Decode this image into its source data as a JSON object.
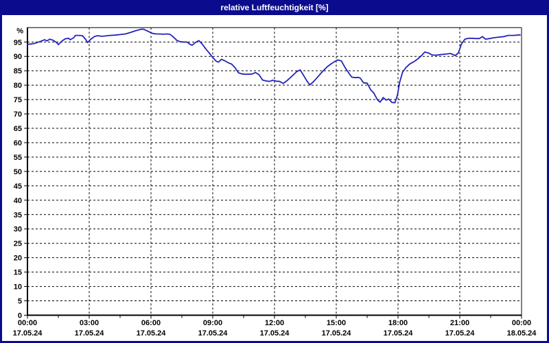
{
  "window": {
    "title": "relative Luftfeuchtigkeit [%]"
  },
  "colors": {
    "title_bar_bg": "#0b0b8e",
    "title_text": "#ffffff",
    "window_border": "#0b0b8e",
    "plot_background": "#ffffff",
    "series_line": "#2222bb",
    "grid": "#000000",
    "axis": "#000000",
    "label": "#000000"
  },
  "chart_data": {
    "type": "line",
    "title": "relative Luftfeuchtigkeit [%]",
    "y_unit_label": "%",
    "ylim": [
      0,
      100
    ],
    "yticks": [
      0,
      5,
      10,
      15,
      20,
      25,
      30,
      35,
      40,
      45,
      50,
      55,
      60,
      65,
      70,
      75,
      80,
      85,
      90,
      95
    ],
    "xlim_hours": [
      0,
      24
    ],
    "grid": "dashed",
    "legend": "none",
    "x_major_ticks": [
      {
        "hour": 0,
        "time": "00:00",
        "date": "17.05.24"
      },
      {
        "hour": 3,
        "time": "03:00",
        "date": "17.05.24"
      },
      {
        "hour": 6,
        "time": "06:00",
        "date": "17.05.24"
      },
      {
        "hour": 9,
        "time": "09:00",
        "date": "17.05.24"
      },
      {
        "hour": 12,
        "time": "12:00",
        "date": "17.05.24"
      },
      {
        "hour": 15,
        "time": "15:00",
        "date": "17.05.24"
      },
      {
        "hour": 18,
        "time": "18:00",
        "date": "17.05.24"
      },
      {
        "hour": 21,
        "time": "21:00",
        "date": "17.05.24"
      },
      {
        "hour": 24,
        "time": "00:00",
        "date": "18.05.24"
      }
    ],
    "x_minor_tick_hours": [
      1.5,
      4.5,
      7.5,
      10.5,
      13.5,
      16.5,
      19.5,
      22.5
    ],
    "series": [
      {
        "name": "relative Luftfeuchtigkeit",
        "unit": "%",
        "points": [
          [
            0.0,
            94.2
          ],
          [
            0.17,
            94.3
          ],
          [
            0.33,
            94.5
          ],
          [
            0.5,
            94.9
          ],
          [
            0.67,
            95.3
          ],
          [
            0.83,
            95.8
          ],
          [
            0.95,
            95.4
          ],
          [
            1.08,
            96.0
          ],
          [
            1.25,
            95.6
          ],
          [
            1.42,
            94.8
          ],
          [
            1.5,
            94.1
          ],
          [
            1.67,
            95.3
          ],
          [
            1.83,
            96.1
          ],
          [
            2.0,
            96.3
          ],
          [
            2.08,
            95.8
          ],
          [
            2.25,
            96.5
          ],
          [
            2.33,
            97.3
          ],
          [
            2.5,
            97.3
          ],
          [
            2.67,
            97.2
          ],
          [
            2.83,
            95.9
          ],
          [
            2.92,
            94.8
          ],
          [
            3.08,
            96.0
          ],
          [
            3.25,
            96.9
          ],
          [
            3.42,
            97.2
          ],
          [
            3.58,
            97.0
          ],
          [
            3.75,
            97.1
          ],
          [
            4.0,
            97.3
          ],
          [
            4.25,
            97.4
          ],
          [
            4.5,
            97.6
          ],
          [
            4.75,
            97.8
          ],
          [
            5.0,
            98.3
          ],
          [
            5.25,
            98.9
          ],
          [
            5.5,
            99.4
          ],
          [
            5.62,
            99.5
          ],
          [
            5.75,
            99.1
          ],
          [
            5.92,
            98.5
          ],
          [
            6.08,
            98.0
          ],
          [
            6.25,
            97.8
          ],
          [
            6.42,
            97.8
          ],
          [
            6.58,
            97.7
          ],
          [
            6.75,
            97.8
          ],
          [
            6.92,
            97.7
          ],
          [
            7.08,
            96.8
          ],
          [
            7.25,
            95.6
          ],
          [
            7.42,
            95.1
          ],
          [
            7.58,
            95.0
          ],
          [
            7.75,
            95.0
          ],
          [
            7.92,
            94.1
          ],
          [
            8.0,
            93.9
          ],
          [
            8.17,
            94.9
          ],
          [
            8.33,
            95.5
          ],
          [
            8.5,
            94.2
          ],
          [
            8.67,
            92.5
          ],
          [
            8.83,
            91.2
          ],
          [
            9.0,
            89.6
          ],
          [
            9.17,
            88.3
          ],
          [
            9.28,
            88.0
          ],
          [
            9.42,
            89.0
          ],
          [
            9.58,
            88.5
          ],
          [
            9.75,
            87.8
          ],
          [
            9.92,
            87.3
          ],
          [
            10.08,
            86.1
          ],
          [
            10.25,
            84.3
          ],
          [
            10.42,
            83.9
          ],
          [
            10.58,
            83.8
          ],
          [
            10.75,
            83.8
          ],
          [
            10.92,
            83.9
          ],
          [
            11.08,
            84.4
          ],
          [
            11.25,
            83.6
          ],
          [
            11.42,
            81.8
          ],
          [
            11.58,
            81.5
          ],
          [
            11.75,
            81.3
          ],
          [
            11.92,
            81.7
          ],
          [
            12.08,
            81.4
          ],
          [
            12.25,
            81.3
          ],
          [
            12.42,
            80.6
          ],
          [
            12.58,
            81.4
          ],
          [
            12.75,
            82.5
          ],
          [
            12.92,
            83.6
          ],
          [
            13.08,
            84.7
          ],
          [
            13.25,
            85.3
          ],
          [
            13.42,
            83.3
          ],
          [
            13.58,
            81.4
          ],
          [
            13.72,
            80.1
          ],
          [
            13.92,
            81.4
          ],
          [
            14.08,
            82.7
          ],
          [
            14.25,
            84.1
          ],
          [
            14.42,
            85.4
          ],
          [
            14.58,
            86.5
          ],
          [
            14.75,
            87.4
          ],
          [
            14.92,
            88.2
          ],
          [
            15.08,
            88.8
          ],
          [
            15.25,
            88.4
          ],
          [
            15.42,
            86.2
          ],
          [
            15.58,
            84.5
          ],
          [
            15.75,
            82.8
          ],
          [
            15.92,
            82.6
          ],
          [
            16.08,
            82.7
          ],
          [
            16.17,
            82.4
          ],
          [
            16.33,
            80.8
          ],
          [
            16.5,
            80.7
          ],
          [
            16.67,
            78.4
          ],
          [
            16.83,
            77.2
          ],
          [
            17.0,
            74.9
          ],
          [
            17.13,
            74.1
          ],
          [
            17.28,
            75.7
          ],
          [
            17.42,
            74.8
          ],
          [
            17.55,
            75.2
          ],
          [
            17.7,
            74.0
          ],
          [
            17.85,
            73.9
          ],
          [
            17.97,
            76.5
          ],
          [
            18.08,
            81.0
          ],
          [
            18.22,
            84.5
          ],
          [
            18.38,
            86.1
          ],
          [
            18.58,
            87.4
          ],
          [
            18.78,
            88.2
          ],
          [
            18.97,
            89.2
          ],
          [
            19.13,
            90.2
          ],
          [
            19.3,
            91.5
          ],
          [
            19.48,
            91.2
          ],
          [
            19.65,
            90.5
          ],
          [
            19.85,
            90.4
          ],
          [
            20.05,
            90.6
          ],
          [
            20.3,
            90.8
          ],
          [
            20.55,
            91.0
          ],
          [
            20.78,
            90.3
          ],
          [
            20.93,
            91.2
          ],
          [
            21.08,
            94.3
          ],
          [
            21.25,
            96.0
          ],
          [
            21.42,
            96.3
          ],
          [
            21.6,
            96.3
          ],
          [
            21.78,
            96.2
          ],
          [
            21.95,
            96.2
          ],
          [
            22.1,
            96.9
          ],
          [
            22.25,
            96.0
          ],
          [
            22.45,
            96.2
          ],
          [
            22.65,
            96.5
          ],
          [
            22.9,
            96.7
          ],
          [
            23.15,
            96.9
          ],
          [
            23.35,
            97.3
          ],
          [
            23.6,
            97.3
          ],
          [
            23.8,
            97.4
          ],
          [
            23.93,
            97.5
          ]
        ]
      }
    ]
  }
}
